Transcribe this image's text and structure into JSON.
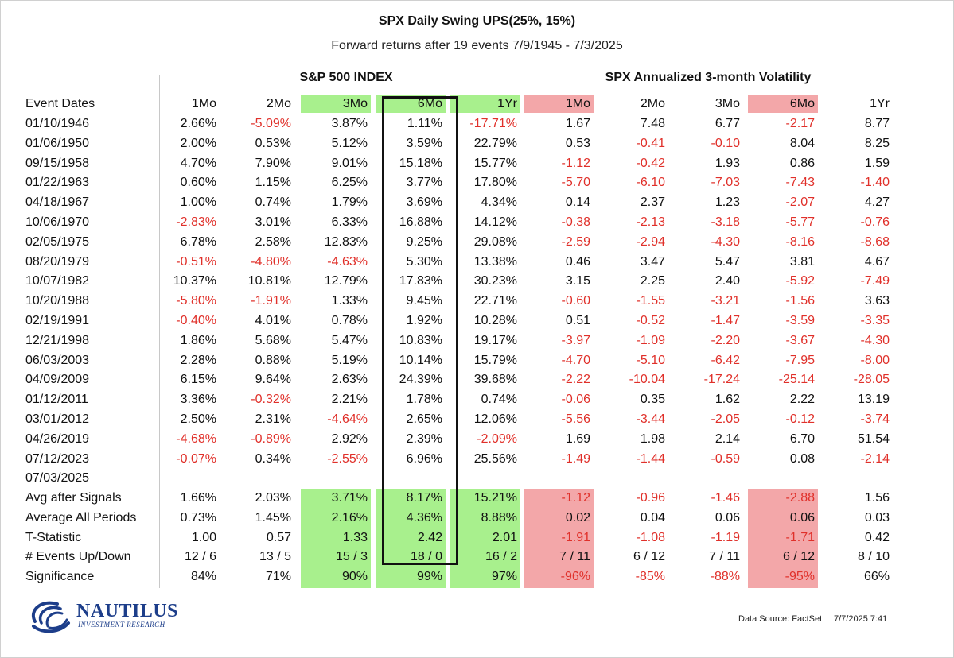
{
  "chart_data": {
    "type": "table",
    "title": "SPX Daily Swing UPS(25%, 15%)",
    "subtitle": "Forward returns after 19 events 7/9/1945 - 7/3/2025",
    "groups": [
      "S&P 500 INDEX",
      "SPX Annualized 3-month Volatility"
    ],
    "row_label_header": "Event Dates",
    "columns": [
      "1Mo",
      "2Mo",
      "3Mo",
      "6Mo",
      "1Yr",
      "1Mo",
      "2Mo",
      "3Mo",
      "6Mo",
      "1Yr"
    ],
    "rows": [
      {
        "label": "01/10/1946",
        "values": [
          "2.66%",
          "-5.09%",
          "3.87%",
          "1.11%",
          "-17.71%",
          "1.67",
          "7.48",
          "6.77",
          "-2.17",
          "8.77"
        ]
      },
      {
        "label": "01/06/1950",
        "values": [
          "2.00%",
          "0.53%",
          "5.12%",
          "3.59%",
          "22.79%",
          "0.53",
          "-0.41",
          "-0.10",
          "8.04",
          "8.25"
        ]
      },
      {
        "label": "09/15/1958",
        "values": [
          "4.70%",
          "7.90%",
          "9.01%",
          "15.18%",
          "15.77%",
          "-1.12",
          "-0.42",
          "1.93",
          "0.86",
          "1.59"
        ]
      },
      {
        "label": "01/22/1963",
        "values": [
          "0.60%",
          "1.15%",
          "6.25%",
          "3.77%",
          "17.80%",
          "-5.70",
          "-6.10",
          "-7.03",
          "-7.43",
          "-1.40"
        ]
      },
      {
        "label": "04/18/1967",
        "values": [
          "1.00%",
          "0.74%",
          "1.79%",
          "3.69%",
          "4.34%",
          "0.14",
          "2.37",
          "1.23",
          "-2.07",
          "4.27"
        ]
      },
      {
        "label": "10/06/1970",
        "values": [
          "-2.83%",
          "3.01%",
          "6.33%",
          "16.88%",
          "14.12%",
          "-0.38",
          "-2.13",
          "-3.18",
          "-5.77",
          "-0.76"
        ]
      },
      {
        "label": "02/05/1975",
        "values": [
          "6.78%",
          "2.58%",
          "12.83%",
          "9.25%",
          "29.08%",
          "-2.59",
          "-2.94",
          "-4.30",
          "-8.16",
          "-8.68"
        ]
      },
      {
        "label": "08/20/1979",
        "values": [
          "-0.51%",
          "-4.80%",
          "-4.63%",
          "5.30%",
          "13.38%",
          "0.46",
          "3.47",
          "5.47",
          "3.81",
          "4.67"
        ]
      },
      {
        "label": "10/07/1982",
        "values": [
          "10.37%",
          "10.81%",
          "12.79%",
          "17.83%",
          "30.23%",
          "3.15",
          "2.25",
          "2.40",
          "-5.92",
          "-7.49"
        ]
      },
      {
        "label": "10/20/1988",
        "values": [
          "-5.80%",
          "-1.91%",
          "1.33%",
          "9.45%",
          "22.71%",
          "-0.60",
          "-1.55",
          "-3.21",
          "-1.56",
          "3.63"
        ]
      },
      {
        "label": "02/19/1991",
        "values": [
          "-0.40%",
          "4.01%",
          "0.78%",
          "1.92%",
          "10.28%",
          "0.51",
          "-0.52",
          "-1.47",
          "-3.59",
          "-3.35"
        ]
      },
      {
        "label": "12/21/1998",
        "values": [
          "1.86%",
          "5.68%",
          "5.47%",
          "10.83%",
          "19.17%",
          "-3.97",
          "-1.09",
          "-2.20",
          "-3.67",
          "-4.30"
        ]
      },
      {
        "label": "06/03/2003",
        "values": [
          "2.28%",
          "0.88%",
          "5.19%",
          "10.14%",
          "15.79%",
          "-4.70",
          "-5.10",
          "-6.42",
          "-7.95",
          "-8.00"
        ]
      },
      {
        "label": "04/09/2009",
        "values": [
          "6.15%",
          "9.64%",
          "2.63%",
          "24.39%",
          "39.68%",
          "-2.22",
          "-10.04",
          "-17.24",
          "-25.14",
          "-28.05"
        ]
      },
      {
        "label": "01/12/2011",
        "values": [
          "3.36%",
          "-0.32%",
          "2.21%",
          "1.78%",
          "0.74%",
          "-0.06",
          "0.35",
          "1.62",
          "2.22",
          "13.19"
        ]
      },
      {
        "label": "03/01/2012",
        "values": [
          "2.50%",
          "2.31%",
          "-4.64%",
          "2.65%",
          "12.06%",
          "-5.56",
          "-3.44",
          "-2.05",
          "-0.12",
          "-3.74"
        ]
      },
      {
        "label": "04/26/2019",
        "values": [
          "-4.68%",
          "-0.89%",
          "2.92%",
          "2.39%",
          "-2.09%",
          "1.69",
          "1.98",
          "2.14",
          "6.70",
          "51.54"
        ]
      },
      {
        "label": "07/12/2023",
        "values": [
          "-0.07%",
          "0.34%",
          "-2.55%",
          "6.96%",
          "25.56%",
          "-1.49",
          "-1.44",
          "-0.59",
          "0.08",
          "-2.14"
        ]
      },
      {
        "label": "07/03/2025",
        "values": [
          "",
          "",
          "",
          "",
          "",
          "",
          "",
          "",
          "",
          ""
        ]
      }
    ],
    "summary_rows": [
      {
        "label": "Avg after Signals",
        "values": [
          "1.66%",
          "2.03%",
          "3.71%",
          "8.17%",
          "15.21%",
          "-1.12",
          "-0.96",
          "-1.46",
          "-2.88",
          "1.56"
        ]
      },
      {
        "label": "Average All Periods",
        "values": [
          "0.73%",
          "1.45%",
          "2.16%",
          "4.36%",
          "8.88%",
          "0.02",
          "0.04",
          "0.06",
          "0.06",
          "0.03"
        ]
      },
      {
        "label": "T-Statistic",
        "values": [
          "1.00",
          "0.57",
          "1.33",
          "2.42",
          "2.01",
          "-1.91",
          "-1.08",
          "-1.19",
          "-1.71",
          "0.42"
        ]
      },
      {
        "label": "# Events Up/Down",
        "values": [
          "12 / 6",
          "13 / 5",
          "15 / 3",
          "18 / 0",
          "16 / 2",
          "7 / 11",
          "6 / 12",
          "7 / 11",
          "6 / 12",
          "8 / 10"
        ]
      },
      {
        "label": "Significance",
        "values": [
          "84%",
          "71%",
          "90%",
          "99%",
          "97%",
          "-96%",
          "-85%",
          "-88%",
          "-95%",
          "66%"
        ]
      }
    ],
    "highlighted_columns": {
      "green": [
        2,
        3,
        4
      ],
      "red": [
        5,
        8
      ]
    },
    "boxed_column": 3
  },
  "colors": {
    "negative": "#e0302a",
    "highlight_green": "#a8f08d",
    "highlight_red": "#f3a7a9",
    "logo_blue": "#1d3e8a"
  },
  "logo": {
    "name": "NAUTILUS",
    "tagline": "INVESTMENT RESEARCH"
  },
  "footer": {
    "source": "Data Source: FactSet",
    "timestamp": "7/7/2025 7:41"
  }
}
